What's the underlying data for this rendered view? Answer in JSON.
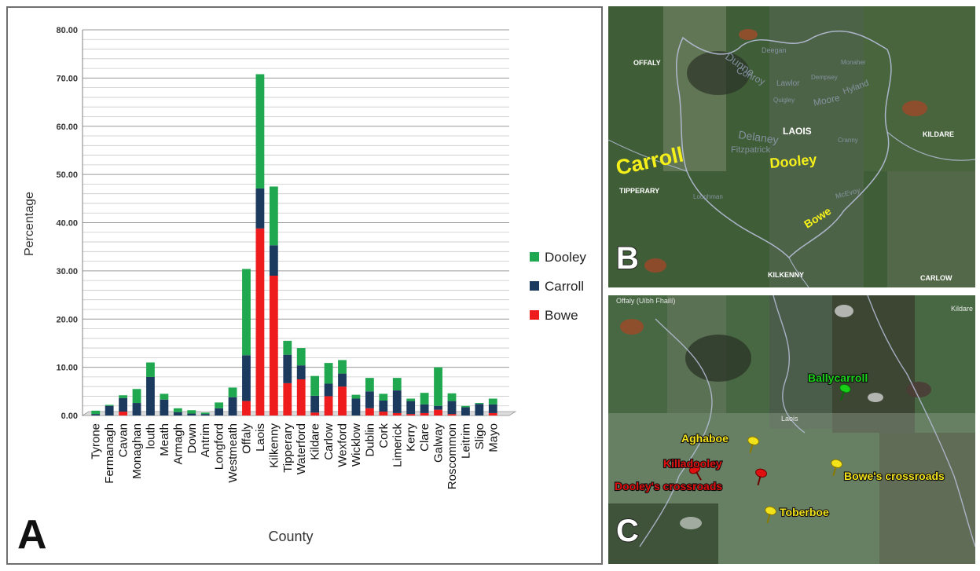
{
  "panels": {
    "a_label": "A",
    "b_label": "B",
    "c_label": "C"
  },
  "chart_data": {
    "type": "bar",
    "stacked": true,
    "title": "",
    "xlabel": "County",
    "ylabel": "Percentage",
    "ylim": [
      0,
      80
    ],
    "y_ticks": [
      "0.00",
      "10.00",
      "20.00",
      "30.00",
      "40.00",
      "50.00",
      "60.00",
      "70.00",
      "80.00"
    ],
    "grid": true,
    "legend_position": "right",
    "categories": [
      "Tyrone",
      "Fermanagh",
      "Cavan",
      "Monaghan",
      "louth",
      "Meath",
      "Armagh",
      "Down",
      "Antrim",
      "Longford",
      "Westmeath",
      "Offaly",
      "Laois",
      "Kilkenny",
      "Tipperary",
      "Waterford",
      "Kildare",
      "Carlow",
      "Wexford",
      "Wicklow",
      "Dublin",
      "Cork",
      "Limerick",
      "Kerry",
      "Clare",
      "Galway",
      "Roscommon",
      "Leitrim",
      "Sligo",
      "Mayo"
    ],
    "series": [
      {
        "name": "Bowe",
        "color": "#ee1c1c",
        "values": [
          0,
          0,
          0.8,
          0,
          0,
          0,
          0,
          0,
          0,
          0,
          0,
          3.0,
          38.8,
          29.0,
          6.7,
          7.5,
          0.6,
          4.0,
          6.0,
          0,
          1.5,
          0.8,
          0.5,
          0.3,
          0.5,
          1.2,
          0.3,
          0,
          0,
          0.5
        ]
      },
      {
        "name": "Carroll",
        "color": "#1c3a5e",
        "values": [
          0.3,
          2.0,
          2.8,
          2.6,
          8.0,
          3.3,
          0.7,
          0.4,
          0.3,
          1.5,
          3.8,
          9.5,
          8.3,
          6.3,
          5.9,
          2.9,
          3.5,
          2.6,
          2.7,
          3.5,
          3.5,
          2.3,
          4.7,
          2.7,
          1.8,
          0.8,
          2.7,
          1.7,
          2.4,
          1.8
        ]
      },
      {
        "name": "Dooley",
        "color": "#1fa84f",
        "values": [
          0.7,
          0.2,
          0.6,
          2.9,
          3.0,
          1.2,
          0.8,
          0.7,
          0.3,
          1.2,
          2.0,
          17.9,
          23.7,
          12.2,
          2.9,
          3.6,
          4.1,
          4.3,
          2.8,
          0.8,
          2.8,
          1.4,
          2.6,
          0.5,
          2.4,
          8.0,
          1.6,
          0.3,
          0.2,
          1.2
        ]
      }
    ]
  },
  "map_b": {
    "counties": [
      "OFFALY",
      "LAOIS",
      "KILDARE",
      "TIPPERARY",
      "KILKENNY",
      "CARLOW"
    ],
    "surnames": [
      "Carroll",
      "Dooley",
      "Bowe"
    ],
    "faint_names": [
      "Dunne",
      "Conroy",
      "Deegan",
      "Lawlor",
      "Dempsey",
      "Monaher",
      "Delaney",
      "Quigley",
      "Moore",
      "Hyland",
      "Fitzpatrick",
      "Cranny",
      "Loughman",
      "McEvoy"
    ]
  },
  "map_c": {
    "regions": [
      "Offaly (Uíbh Fhailí)",
      "Kildare",
      "Laois"
    ],
    "places": [
      {
        "name": "Ballycarroll",
        "color": "#18d018"
      },
      {
        "name": "Aghaboe",
        "color": "#f2e21a"
      },
      {
        "name": "Killadooley",
        "color": "#e01010"
      },
      {
        "name": "Dooley's crossroads",
        "color": "#e01010"
      },
      {
        "name": "Bowe's crossroads",
        "color": "#f2e21a"
      },
      {
        "name": "Toberboe",
        "color": "#f2e21a"
      }
    ]
  }
}
